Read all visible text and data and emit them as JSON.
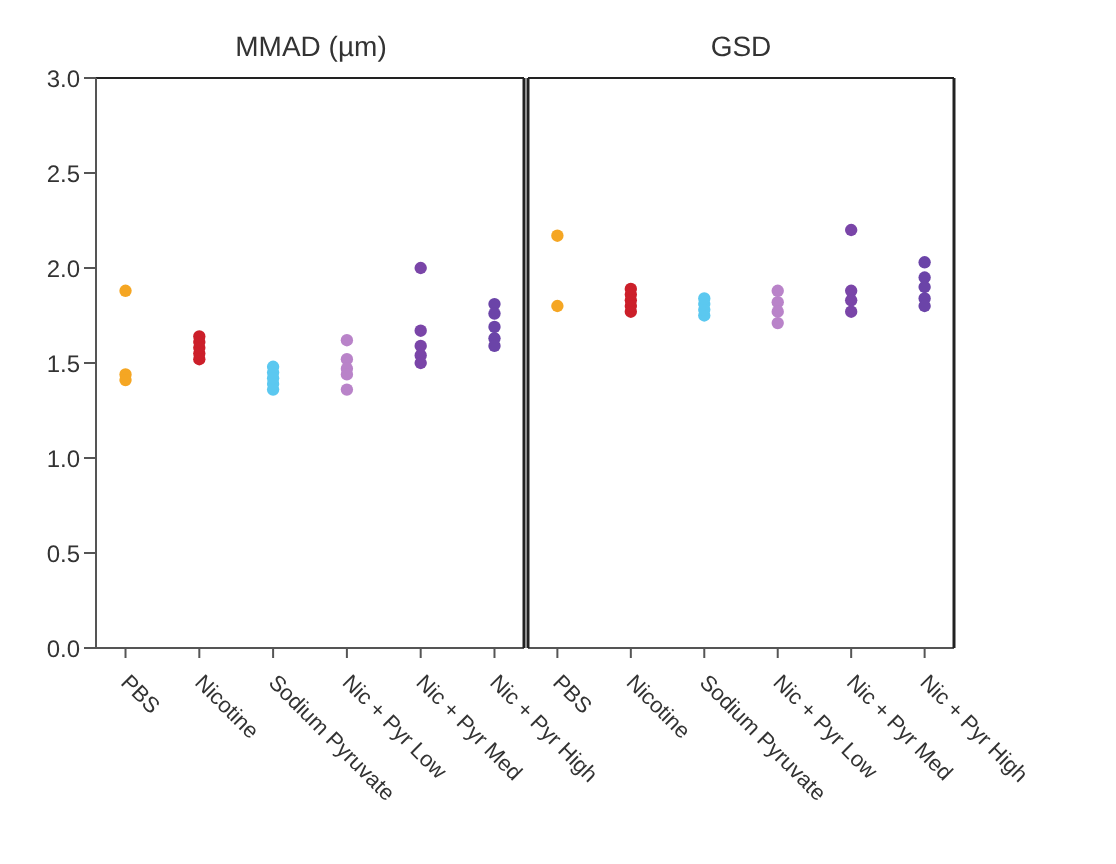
{
  "chart_data": [
    {
      "type": "scatter",
      "title": "MMAD (µm)",
      "categories": [
        "PBS",
        "Nicotine",
        "Sodium Pyruvate",
        "Nic + Pyr Low",
        "Nic + Pyr Med",
        "Nic + Pyr High"
      ],
      "ylim": [
        0,
        3
      ],
      "yticks": [
        {
          "value": 0,
          "label": "0.0"
        },
        {
          "value": 0.5,
          "label": "0.5"
        },
        {
          "value": 1,
          "label": "1.0"
        },
        {
          "value": 1.5,
          "label": "1.5"
        },
        {
          "value": 2,
          "label": "2.0"
        },
        {
          "value": 2.5,
          "label": "2.5"
        },
        {
          "value": 3,
          "label": "3.0"
        }
      ],
      "marker": "circle",
      "series": [
        {
          "color": "#f5a623",
          "x": [
            "PBS",
            "PBS",
            "PBS"
          ],
          "values": [
            1.88,
            1.44,
            1.41
          ]
        },
        {
          "color": "#cc1f2a",
          "x": [
            "Nicotine",
            "Nicotine",
            "Nicotine",
            "Nicotine",
            "Nicotine"
          ],
          "values": [
            1.52,
            1.55,
            1.58,
            1.61,
            1.64
          ]
        },
        {
          "color": "#5bc8f0",
          "x": [
            "Sodium Pyruvate",
            "Sodium Pyruvate",
            "Sodium Pyruvate",
            "Sodium Pyruvate",
            "Sodium Pyruvate"
          ],
          "values": [
            1.36,
            1.39,
            1.42,
            1.45,
            1.48
          ]
        },
        {
          "color": "#b983c9",
          "x": [
            "Nic + Pyr Low",
            "Nic + Pyr Low",
            "Nic + Pyr Low",
            "Nic + Pyr Low",
            "Nic + Pyr Low"
          ],
          "values": [
            1.62,
            1.52,
            1.47,
            1.44,
            1.36
          ]
        },
        {
          "color": "#7a45a8",
          "x": [
            "Nic + Pyr Med",
            "Nic + Pyr Med",
            "Nic + Pyr Med",
            "Nic + Pyr Med",
            "Nic + Pyr Med"
          ],
          "values": [
            2.0,
            1.67,
            1.59,
            1.54,
            1.5
          ]
        },
        {
          "color": "#6b44a8",
          "x": [
            "Nic + Pyr High",
            "Nic + Pyr High",
            "Nic + Pyr High",
            "Nic + Pyr High",
            "Nic + Pyr High"
          ],
          "values": [
            1.81,
            1.76,
            1.69,
            1.63,
            1.59
          ]
        }
      ]
    },
    {
      "type": "scatter",
      "title": "GSD",
      "categories": [
        "PBS",
        "Nicotine",
        "Sodium Pyruvate",
        "Nic + Pyr Low",
        "Nic + Pyr Med",
        "Nic + Pyr High"
      ],
      "ylim": [
        0,
        3
      ],
      "tick_labels": "x",
      "marker": "circle",
      "series": [
        {
          "color": "#f5a623",
          "x": [
            "PBS",
            "PBS"
          ],
          "values": [
            2.17,
            1.8
          ]
        },
        {
          "color": "#cc1f2a",
          "x": [
            "Nicotine",
            "Nicotine",
            "Nicotine",
            "Nicotine",
            "Nicotine"
          ],
          "values": [
            1.77,
            1.8,
            1.83,
            1.86,
            1.89
          ]
        },
        {
          "color": "#5bc8f0",
          "x": [
            "Sodium Pyruvate",
            "Sodium Pyruvate",
            "Sodium Pyruvate",
            "Sodium Pyruvate"
          ],
          "values": [
            1.75,
            1.78,
            1.81,
            1.84
          ]
        },
        {
          "color": "#b983c9",
          "x": [
            "Nic + Pyr Low",
            "Nic + Pyr Low",
            "Nic + Pyr Low",
            "Nic + Pyr Low"
          ],
          "values": [
            1.88,
            1.82,
            1.77,
            1.71
          ]
        },
        {
          "color": "#7a45a8",
          "x": [
            "Nic + Pyr Med",
            "Nic + Pyr Med",
            "Nic + Pyr Med",
            "Nic + Pyr Med"
          ],
          "values": [
            2.2,
            1.88,
            1.83,
            1.77
          ]
        },
        {
          "color": "#6b44a8",
          "x": [
            "Nic + Pyr High",
            "Nic + Pyr High",
            "Nic + Pyr High",
            "Nic + Pyr High",
            "Nic + Pyr High"
          ],
          "values": [
            2.03,
            1.95,
            1.9,
            1.84,
            1.8
          ]
        }
      ]
    }
  ]
}
